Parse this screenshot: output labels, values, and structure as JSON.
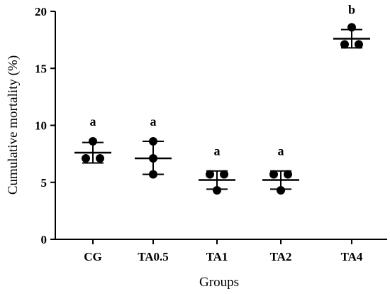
{
  "chart_data": {
    "type": "scatter",
    "xlabel": "Groups",
    "ylabel": "Cumulative mortality (%)",
    "ylim": [
      0,
      20
    ],
    "yticks": [
      "0",
      "5",
      "10",
      "15",
      "20"
    ],
    "categories": [
      "CG",
      "TA0.5",
      "TA1",
      "TA2",
      "TA4"
    ],
    "groups": [
      {
        "name": "CG",
        "points": [
          8.6,
          7.1,
          7.1
        ],
        "mean": 7.6,
        "sd_low": 6.7,
        "sd_high": 8.5,
        "sig": "a"
      },
      {
        "name": "TA0.5",
        "points": [
          8.6,
          7.1,
          5.7
        ],
        "mean": 7.1,
        "sd_low": 5.7,
        "sd_high": 8.6,
        "sig": "a"
      },
      {
        "name": "TA1",
        "points": [
          5.7,
          5.7,
          4.3
        ],
        "mean": 5.2,
        "sd_low": 4.4,
        "sd_high": 6.0,
        "sig": "a"
      },
      {
        "name": "TA2",
        "points": [
          5.7,
          5.7,
          4.3
        ],
        "mean": 5.2,
        "sd_low": 4.4,
        "sd_high": 6.0,
        "sig": "a"
      },
      {
        "name": "TA4",
        "points": [
          18.6,
          17.1,
          17.1
        ],
        "mean": 17.6,
        "sd_low": 16.8,
        "sd_high": 18.4,
        "sig": "b"
      }
    ]
  }
}
